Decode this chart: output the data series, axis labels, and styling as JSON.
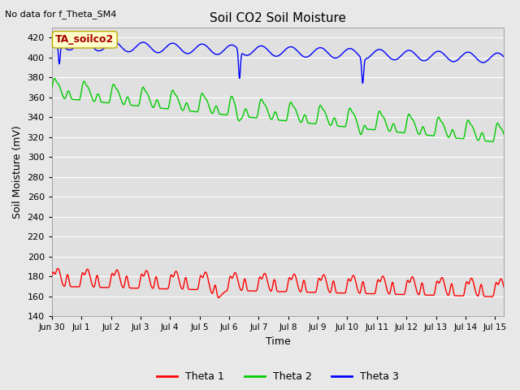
{
  "title": "Soil CO2 Soil Moisture",
  "no_data_text": "No data for f_Theta_SM4",
  "annotation_text": "TA_soilco2",
  "xlabel": "Time",
  "ylabel": "Soil Moisture (mV)",
  "ylim": [
    140,
    430
  ],
  "yticks": [
    140,
    160,
    180,
    200,
    220,
    240,
    260,
    280,
    300,
    320,
    340,
    360,
    380,
    400,
    420
  ],
  "fig_bg_color": "#e8e8e8",
  "plot_bg_color": "#e0e0e0",
  "grid_color": "#ffffff",
  "colors": {
    "theta1": "#ff0000",
    "theta2": "#00cc00",
    "theta3": "#0000ff"
  },
  "legend": [
    "Theta 1",
    "Theta 2",
    "Theta 3"
  ],
  "x_start_day": 0,
  "x_end_day": 15.3,
  "x_tick_labels": [
    "Jun 30",
    "Jul 1",
    "Jul 2",
    "Jul 3",
    "Jul 4",
    "Jul 5",
    "Jul 6",
    "Jul 7",
    "Jul 8",
    "Jul 9",
    "Jul 10",
    "Jul 11",
    "Jul 12",
    "Jul 13",
    "Jul 14",
    "Jul 15"
  ],
  "x_tick_positions": [
    0,
    1,
    2,
    3,
    4,
    5,
    6,
    7,
    8,
    9,
    10,
    11,
    12,
    13,
    14,
    15
  ]
}
